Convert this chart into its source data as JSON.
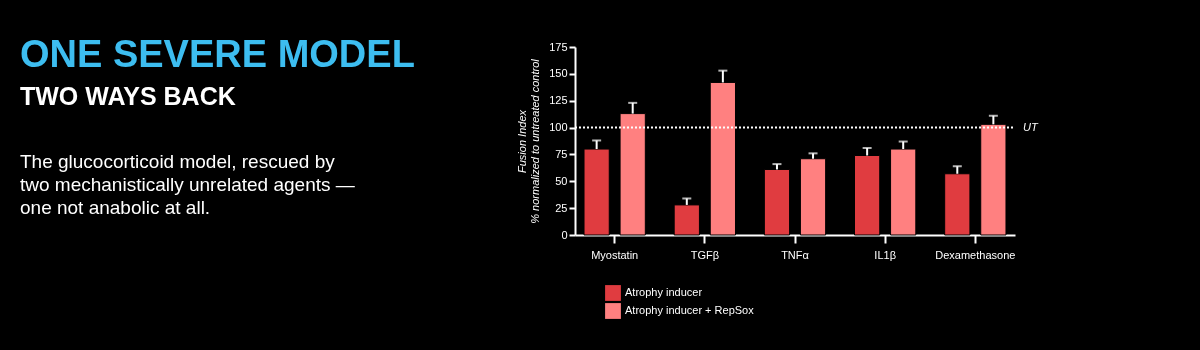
{
  "chart_data": {
    "type": "bar",
    "title": "ONE SEVERE MODEL",
    "subtitle": "TWO WAYS BACK",
    "annotations": [
      "The glucocorticoid model, rescued by two mechanistically unrelated agents — one not anabolic at all."
    ],
    "ylabel": "Fusion Index\n% normalized to untreated control",
    "categories": [
      "Myostatin",
      "TGFβ",
      "TNFα",
      "IL1β",
      "Dexamethasone"
    ],
    "series": [
      {
        "name": "Atrophy inducer",
        "color": "#e03c40",
        "values": [
          80,
          28,
          61,
          74,
          57
        ],
        "errors": [
          [
            80,
            88
          ],
          [
            28,
            34
          ],
          [
            61,
            66
          ],
          [
            74,
            81
          ],
          [
            57,
            64
          ]
        ]
      },
      {
        "name": "Atrophy inducer + RepSox",
        "color": "#ff8080",
        "values": [
          113,
          142,
          71,
          80,
          103
        ],
        "errors": [
          [
            113,
            123
          ],
          [
            142,
            153
          ],
          [
            71,
            76
          ],
          [
            80,
            87
          ],
          [
            103,
            111
          ]
        ]
      }
    ],
    "ylim": [
      0,
      175
    ],
    "yticks": [
      0,
      25,
      50,
      75,
      100,
      125,
      150,
      175
    ],
    "ref_lines": [
      {
        "axis": "y",
        "value": 100,
        "label": "UT",
        "color": "#ffffff",
        "line_style": "dotted"
      }
    ],
    "grid": false,
    "legend": "bottom left"
  }
}
